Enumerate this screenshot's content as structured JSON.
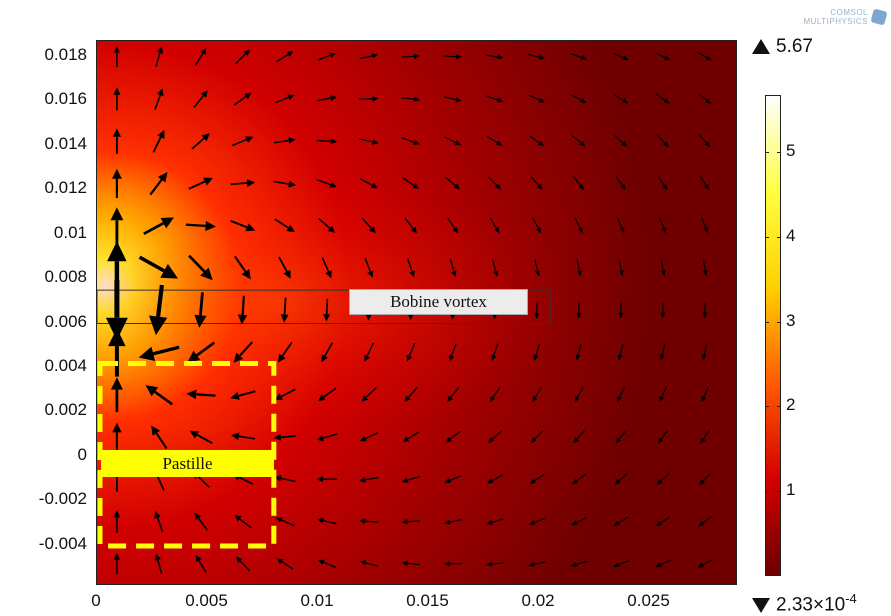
{
  "logo": {
    "line1": "COMSOL",
    "line2": "MULTIPHYSICS",
    "icon": "comsol-cube-icon"
  },
  "chart_data": {
    "type": "heatmap",
    "title": "",
    "xlabel": "",
    "ylabel": "",
    "xlim": [
      0,
      0.029
    ],
    "ylim": [
      -0.0058,
      0.0187
    ],
    "x_ticks": [
      {
        "value": 0,
        "label": "0"
      },
      {
        "value": 0.005,
        "label": "0.005"
      },
      {
        "value": 0.01,
        "label": "0.01"
      },
      {
        "value": 0.015,
        "label": "0.015"
      },
      {
        "value": 0.02,
        "label": "0.02"
      },
      {
        "value": 0.025,
        "label": "0.025"
      }
    ],
    "y_ticks": [
      {
        "value": 0.018,
        "label": "0.018"
      },
      {
        "value": 0.016,
        "label": "0.016"
      },
      {
        "value": 0.014,
        "label": "0.014"
      },
      {
        "value": 0.012,
        "label": "0.012"
      },
      {
        "value": 0.01,
        "label": "0.01"
      },
      {
        "value": 0.008,
        "label": "0.008"
      },
      {
        "value": 0.006,
        "label": "0.006"
      },
      {
        "value": 0.004,
        "label": "0.004"
      },
      {
        "value": 0.002,
        "label": "0.002"
      },
      {
        "value": 0,
        "label": "0"
      },
      {
        "value": -0.002,
        "label": "-0.002"
      },
      {
        "value": -0.004,
        "label": "-0.004"
      }
    ],
    "colorbar": {
      "max_label": "5.67",
      "min_label_base": "2.33×10",
      "min_label_exp": "-4",
      "max": 5.67,
      "min": 0.000233,
      "ticks": [
        {
          "value": 5,
          "label": "5"
        },
        {
          "value": 4,
          "label": "4"
        },
        {
          "value": 3,
          "label": "3"
        },
        {
          "value": 2,
          "label": "2"
        },
        {
          "value": 1,
          "label": "1"
        }
      ],
      "colors": [
        "#6b0000",
        "#d40000",
        "#ff5a00",
        "#ffd000",
        "#ffff40",
        "#ffffff"
      ]
    },
    "source": {
      "x": 0.0009,
      "y": 0.0068
    },
    "regions": [
      {
        "name": "coil",
        "x": [
          0,
          0.0205
        ],
        "y": [
          0.006,
          0.0075
        ],
        "label": "Bobine vortex"
      },
      {
        "name": "pellet",
        "x": [
          0,
          0.008
        ],
        "y": [
          -0.004,
          0.0042
        ],
        "label": "Pastille"
      }
    ],
    "labels": {
      "coil": "Bobine vortex",
      "pellet": "Pastille"
    },
    "background_color": "#c00000",
    "arrow_color": "#000000",
    "pellet_outline_color": "#ffff00"
  }
}
